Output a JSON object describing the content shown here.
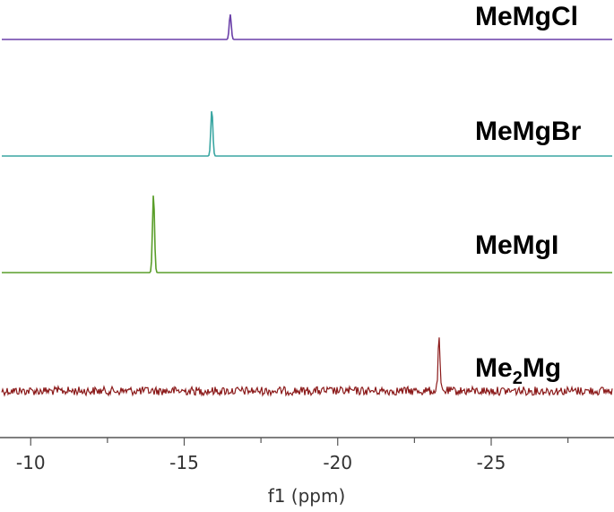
{
  "chart_data": {
    "type": "line",
    "title": "",
    "xlabel": "f1 (ppm)",
    "ylabel": "",
    "xlim": [
      -9,
      -29
    ],
    "x_ticks": [
      -10,
      -15,
      -20,
      -25
    ],
    "x_tick_labels": [
      "-10",
      "-15",
      "-20",
      "-25"
    ],
    "grid": false,
    "legend": "inline-right",
    "series": [
      {
        "name": "MeMgCl",
        "label_main": "MeMgCl",
        "label_sub": "",
        "color": "#6a3fa8",
        "peak_ppm": -16.5,
        "peak_height": 1.0,
        "noise": 0.0
      },
      {
        "name": "MeMgBr",
        "label_main": "MeMgBr",
        "label_sub": "",
        "color": "#3aa6a2",
        "peak_ppm": -15.9,
        "peak_height": 1.0,
        "noise": 0.0
      },
      {
        "name": "MeMgI",
        "label_main": "MeMgI",
        "label_sub": "",
        "color": "#5a9e2a",
        "peak_ppm": -14.0,
        "peak_height": 1.0,
        "noise": 0.0
      },
      {
        "name": "Me2Mg",
        "label_main": "Me",
        "label_sub": "2",
        "label_tail": "Mg",
        "color": "#8b1a1a",
        "peak_ppm": -23.3,
        "peak_height": 1.0,
        "noise": 0.08
      }
    ]
  }
}
